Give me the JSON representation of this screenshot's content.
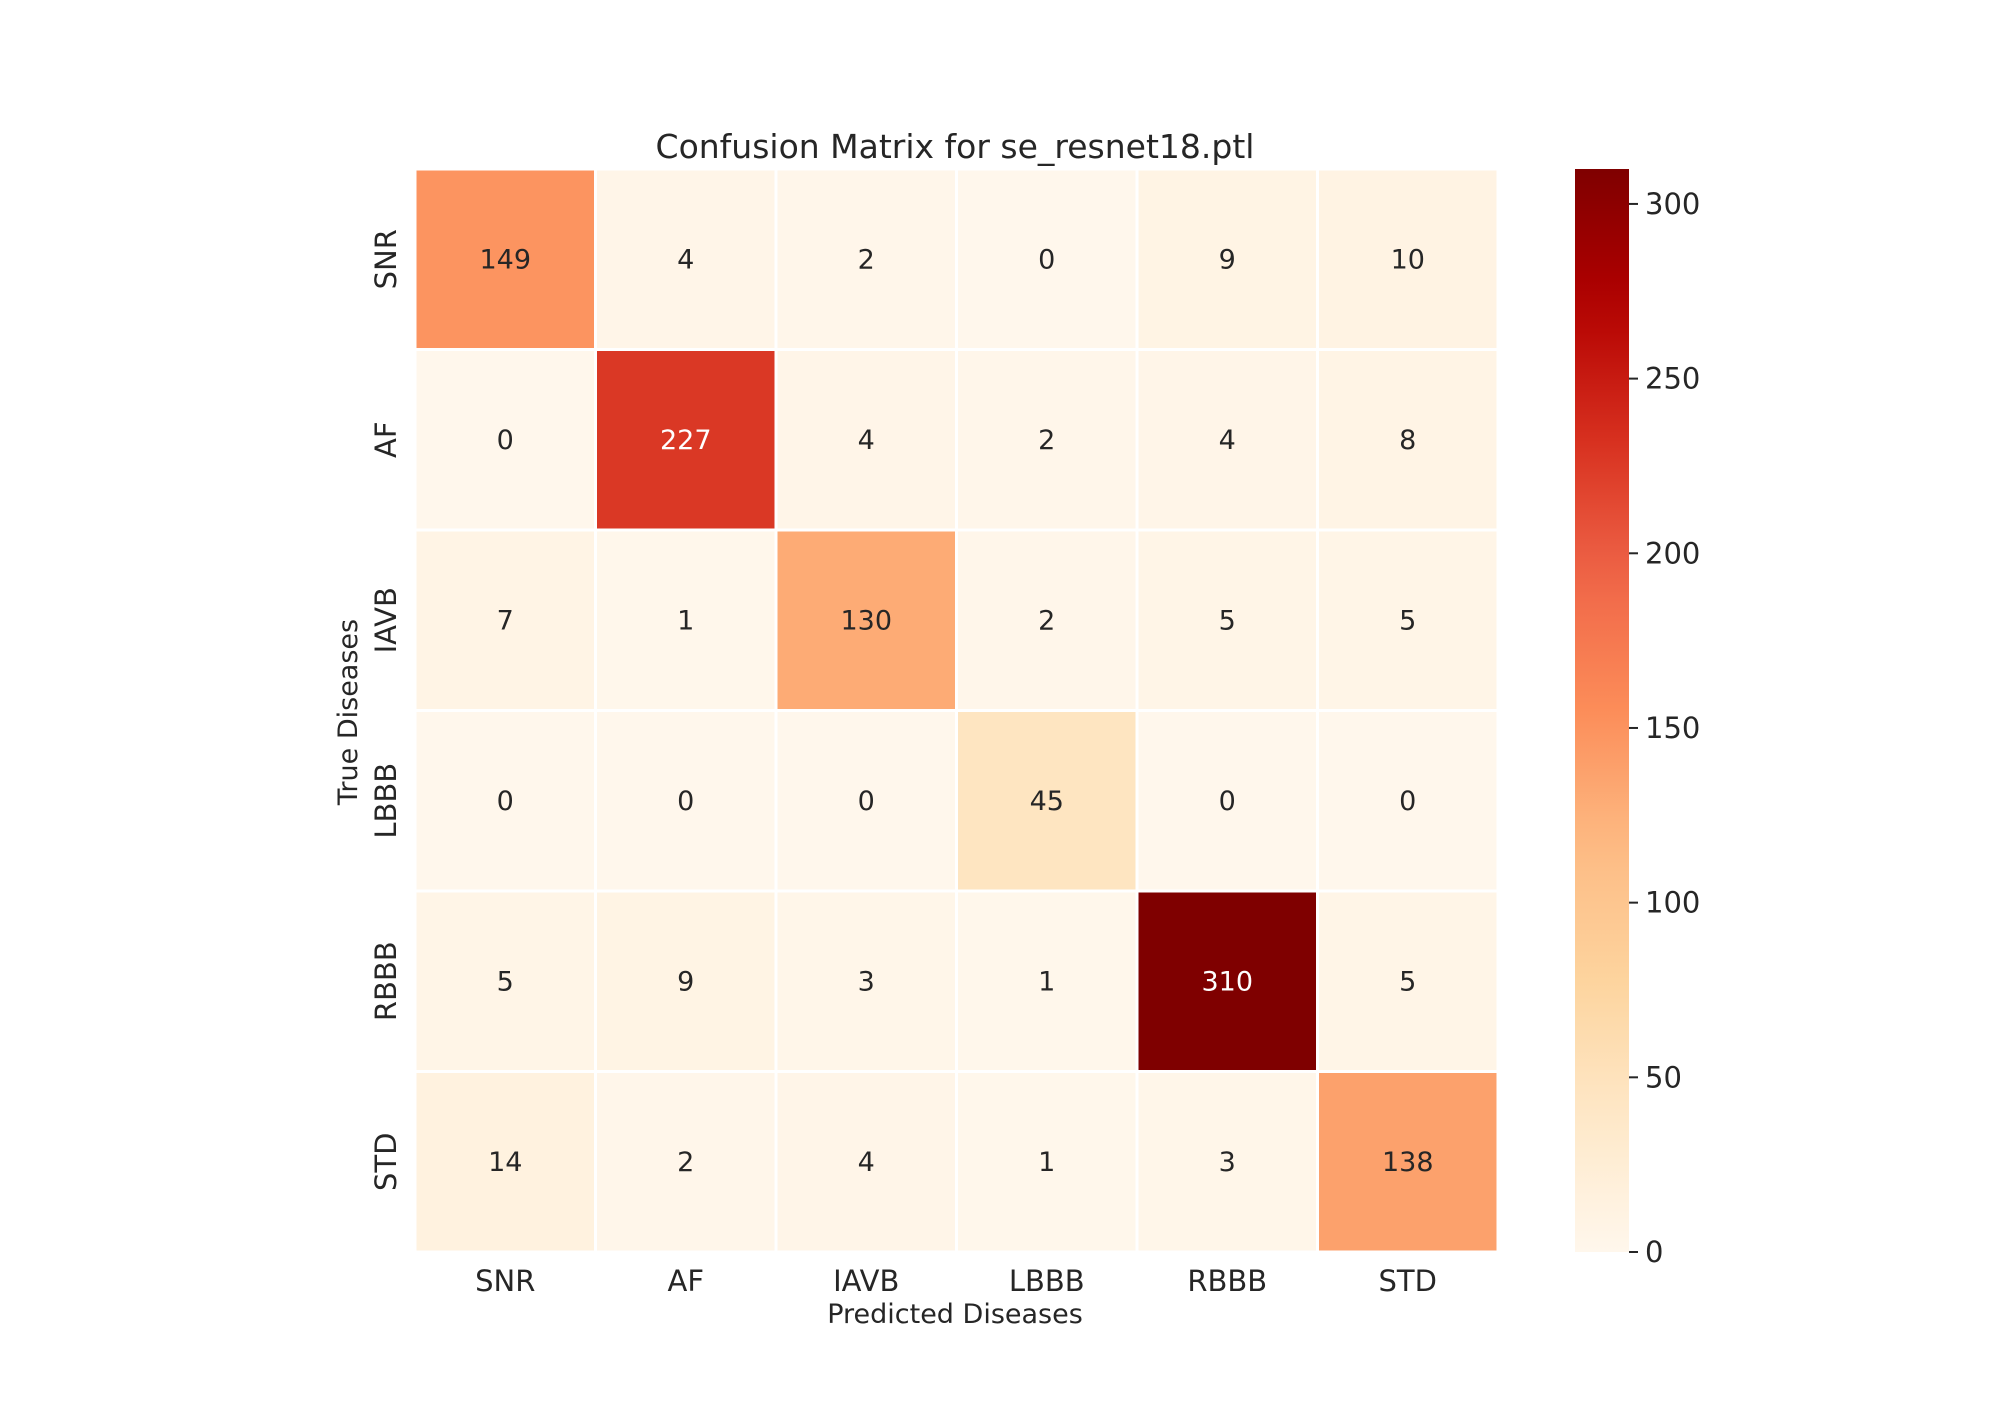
{
  "chart_data": {
    "type": "heatmap",
    "title": "Confusion Matrix for se_resnet18.ptl",
    "xlabel": "Predicted Diseases",
    "ylabel": "True Diseases",
    "x_categories": [
      "SNR",
      "AF",
      "IAVB",
      "LBBB",
      "RBBB",
      "STD"
    ],
    "y_categories": [
      "SNR",
      "AF",
      "IAVB",
      "LBBB",
      "RBBB",
      "STD"
    ],
    "values": [
      [
        149,
        4,
        2,
        0,
        9,
        10
      ],
      [
        0,
        227,
        4,
        2,
        4,
        8
      ],
      [
        7,
        1,
        130,
        2,
        5,
        5
      ],
      [
        0,
        0,
        0,
        45,
        0,
        0
      ],
      [
        5,
        9,
        3,
        1,
        310,
        5
      ],
      [
        14,
        2,
        4,
        1,
        3,
        138
      ]
    ],
    "colorbar": {
      "colormap": "OrRd",
      "range": [
        0,
        310
      ],
      "ticks": [
        "0",
        "50",
        "100",
        "150",
        "200",
        "250",
        "300"
      ]
    }
  }
}
